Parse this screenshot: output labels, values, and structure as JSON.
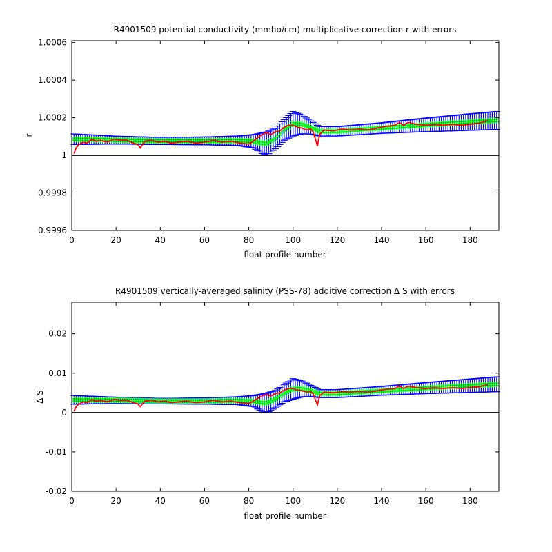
{
  "chart_data": [
    {
      "type": "line",
      "title": "R4901509 potential conductivity (mmho/cm) multiplicative correction r with errors",
      "xlabel": "float profile number",
      "ylabel": "r",
      "xlim": [
        0,
        193
      ],
      "ylim": [
        0.9996,
        1.00061
      ],
      "x_ticks": [
        "0",
        "20",
        "40",
        "60",
        "80",
        "100",
        "120",
        "140",
        "160",
        "180"
      ],
      "y_ticks": [
        "0.9996",
        "0.9998",
        "1",
        "1.0002",
        "1.0004",
        "1.0006"
      ],
      "y_tick_values": [
        0.9996,
        0.9998,
        1.0,
        1.0002,
        1.0004,
        1.0006
      ],
      "reference_line": 1.0,
      "grid": false,
      "colors": {
        "fit": "#00ff00",
        "error_bars": "#0000ff",
        "profile_series": "#ff0000",
        "reference": "#000000"
      },
      "series": [
        {
          "role": "fitted-correction",
          "x": [
            1,
            20,
            40,
            60,
            75,
            82,
            86,
            88,
            92,
            96,
            100,
            104,
            108,
            112,
            120,
            140,
            160,
            180,
            193
          ],
          "values": [
            1.000086,
            1.000081,
            1.000077,
            1.000077,
            1.000078,
            1.000075,
            1.000065,
            1.000062,
            1.00009,
            1.000135,
            1.000168,
            1.000165,
            1.000148,
            1.000128,
            1.000128,
            1.000145,
            1.000162,
            1.000177,
            1.000186
          ],
          "error": [
            2.8e-05,
            2.1e-05,
            1.9e-05,
            2.1e-05,
            2.5e-05,
            3.5e-05,
            5.5e-05,
            6.2e-05,
            5.5e-05,
            5.5e-05,
            6.5e-05,
            5e-05,
            3.5e-05,
            2.5e-05,
            2.5e-05,
            2.8e-05,
            3.6e-05,
            4.4e-05,
            4.8e-05
          ]
        },
        {
          "role": "profile-correction",
          "x": [
            1,
            2,
            3,
            5,
            7,
            9,
            11,
            13,
            16,
            19,
            22,
            25,
            28,
            30,
            31,
            33,
            36,
            39,
            42,
            45,
            48,
            52,
            56,
            60,
            64,
            68,
            72,
            76,
            80,
            82,
            84,
            86,
            88,
            90,
            92,
            94,
            96,
            98,
            100,
            102,
            104,
            106,
            108,
            109,
            110,
            111,
            112,
            114,
            118,
            122,
            126,
            130,
            134,
            138,
            142,
            146,
            148,
            150,
            152,
            156,
            160,
            164,
            168,
            172,
            176,
            180,
            184,
            188
          ],
          "values": [
            1.00001,
            1.00004,
            1.000055,
            1.00007,
            1.000065,
            1.000085,
            1.000075,
            1.00008,
            1.00007,
            1.000085,
            1.00008,
            1.00008,
            1.000065,
            1.000055,
            1.00004,
            1.000075,
            1.00008,
            1.00007,
            1.000075,
            1.000065,
            1.00007,
            1.000075,
            1.000065,
            1.00007,
            1.00008,
            1.00007,
            1.000075,
            1.000065,
            1.00006,
            1.000075,
            1.000095,
            1.00011,
            1.00012,
            1.00011,
            1.000125,
            1.00013,
            1.00015,
            1.00016,
            1.00016,
            1.00015,
            1.000145,
            1.000135,
            1.00014,
            1.000125,
            1.00009,
            1.00005,
            1.00011,
            1.000135,
            1.00013,
            1.00014,
            1.000135,
            1.00014,
            1.000135,
            1.000145,
            1.000155,
            1.00016,
            1.000175,
            1.00016,
            1.000175,
            1.000165,
            1.00016,
            1.000165,
            1.00016,
            1.000165,
            1.00016,
            1.000165,
            1.00017,
            1.000185
          ]
        }
      ]
    },
    {
      "type": "line",
      "title": "R4901509 vertically-averaged salinity (PSS-78) additive correction Δ S with errors",
      "xlabel": "float profile number",
      "ylabel": "Δ S",
      "xlim": [
        0,
        193
      ],
      "ylim": [
        -0.02,
        0.028
      ],
      "x_ticks": [
        "0",
        "20",
        "40",
        "60",
        "80",
        "100",
        "120",
        "140",
        "160",
        "180"
      ],
      "y_ticks": [
        "-0.02",
        "-0.01",
        "0",
        "0.01",
        "0.02"
      ],
      "y_tick_values": [
        -0.02,
        -0.01,
        0.0,
        0.01,
        0.02
      ],
      "reference_line": 0.0,
      "grid": false,
      "colors": {
        "fit": "#00ff00",
        "error_bars": "#0000ff",
        "profile_series": "#ff0000",
        "reference": "#000000"
      },
      "series": [
        {
          "role": "fitted-correction",
          "x": [
            1,
            20,
            40,
            60,
            75,
            82,
            86,
            88,
            92,
            96,
            100,
            104,
            108,
            112,
            120,
            140,
            160,
            180,
            193
          ],
          "values": [
            0.0032,
            0.0031,
            0.0029,
            0.0029,
            0.003,
            0.0029,
            0.0025,
            0.0024,
            0.0034,
            0.0049,
            0.006,
            0.006,
            0.0055,
            0.0048,
            0.0048,
            0.0055,
            0.0062,
            0.0068,
            0.0072
          ],
          "error": [
            0.0011,
            0.0008,
            0.0007,
            0.0008,
            0.001,
            0.0014,
            0.0022,
            0.0025,
            0.0022,
            0.0022,
            0.0026,
            0.002,
            0.0014,
            0.001,
            0.001,
            0.0011,
            0.0014,
            0.0017,
            0.0019
          ]
        },
        {
          "role": "profile-correction",
          "x": [
            1,
            2,
            3,
            5,
            7,
            9,
            11,
            13,
            16,
            19,
            22,
            25,
            28,
            30,
            31,
            33,
            36,
            39,
            42,
            45,
            48,
            52,
            56,
            60,
            64,
            68,
            72,
            76,
            80,
            82,
            84,
            86,
            88,
            90,
            92,
            94,
            96,
            98,
            100,
            102,
            104,
            106,
            108,
            109,
            110,
            111,
            112,
            114,
            118,
            122,
            126,
            130,
            134,
            138,
            142,
            146,
            148,
            150,
            152,
            156,
            160,
            164,
            168,
            172,
            176,
            180,
            184,
            188
          ],
          "values": [
            0.0003,
            0.0015,
            0.002,
            0.0027,
            0.0025,
            0.0033,
            0.0029,
            0.0031,
            0.0027,
            0.0033,
            0.0031,
            0.0031,
            0.0025,
            0.0021,
            0.0015,
            0.0029,
            0.0031,
            0.0027,
            0.0029,
            0.0025,
            0.0027,
            0.0029,
            0.0025,
            0.0027,
            0.0031,
            0.0027,
            0.0029,
            0.0025,
            0.0023,
            0.0029,
            0.0036,
            0.0042,
            0.0046,
            0.0042,
            0.0048,
            0.005,
            0.0057,
            0.0061,
            0.0061,
            0.0057,
            0.0055,
            0.0052,
            0.0053,
            0.0048,
            0.0034,
            0.0019,
            0.0042,
            0.0052,
            0.005,
            0.0053,
            0.0052,
            0.0053,
            0.0052,
            0.0055,
            0.0059,
            0.0061,
            0.0067,
            0.0061,
            0.0067,
            0.0063,
            0.0061,
            0.0063,
            0.0061,
            0.0063,
            0.0061,
            0.0063,
            0.0065,
            0.0071
          ]
        }
      ]
    }
  ]
}
